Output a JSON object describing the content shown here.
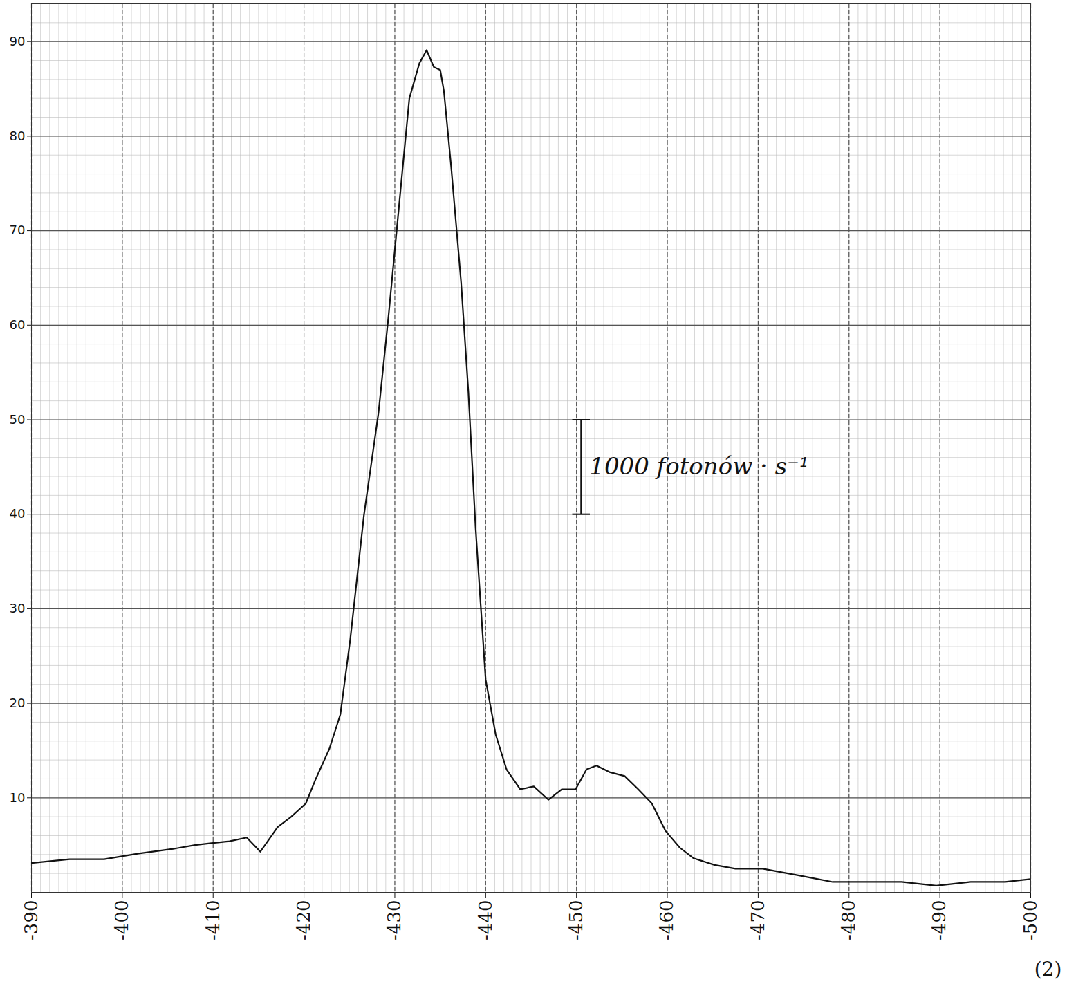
{
  "chart_data": {
    "type": "line",
    "x": [
      -390,
      -394.2,
      -398,
      -401.8,
      -405.6,
      -408,
      -409.8,
      -411.8,
      -413.7,
      -415.2,
      -417.1,
      -418.6,
      -420.2,
      -421.3,
      -422.8,
      -424,
      -425.1,
      -426.6,
      -428.2,
      -429.3,
      -430.5,
      -431.6,
      -432.7,
      -433.5,
      -434.3,
      -435,
      -435.4,
      -436.2,
      -437.3,
      -438.1,
      -438.9,
      -440,
      -441.1,
      -442.3,
      -443.8,
      -445.3,
      -446.9,
      -448.4,
      -449.9,
      -451.1,
      -452.2,
      -453.7,
      -455.3,
      -456.8,
      -458.3,
      -459.8,
      -461.4,
      -462.9,
      -465.2,
      -467.5,
      -470.5,
      -474.4,
      -478.2,
      -482,
      -485.8,
      -489.6,
      -493.4,
      -497.2,
      -500
    ],
    "series": [
      {
        "color": "#111111",
        "values": [
          3.1,
          3.5,
          3.5,
          4.1,
          4.6,
          5,
          5.2,
          5.4,
          5.8,
          4.3,
          6.9,
          8,
          9.4,
          12,
          15.2,
          18.8,
          26.8,
          39.9,
          50.7,
          60.9,
          73,
          84,
          87.7,
          89.1,
          87.3,
          87,
          84.8,
          76.8,
          64.5,
          52.9,
          38.4,
          22.5,
          16.7,
          13,
          10.9,
          11.2,
          9.8,
          10.9,
          10.9,
          13,
          13.4,
          12.7,
          12.3,
          10.9,
          9.4,
          6.5,
          4.7,
          3.6,
          2.9,
          2.5,
          2.5,
          1.8,
          1.1,
          1.1,
          1.1,
          0.7,
          1.1,
          1.1,
          1.4
        ]
      }
    ],
    "xlim": [
      -390,
      -500
    ],
    "xticks": [
      -390,
      -400,
      -410,
      -420,
      -430,
      -440,
      -450,
      -460,
      -470,
      -480,
      -490,
      -500
    ],
    "ylim": [
      0,
      94
    ],
    "yticks": [
      10,
      20,
      30,
      40,
      50,
      60,
      70,
      80,
      90
    ],
    "grid": true,
    "annotations": [
      {
        "text": "1000 fotonów · s⁻¹",
        "x": -450.5,
        "y1": 40,
        "y2": 50
      },
      {
        "text": "(2)"
      }
    ]
  }
}
